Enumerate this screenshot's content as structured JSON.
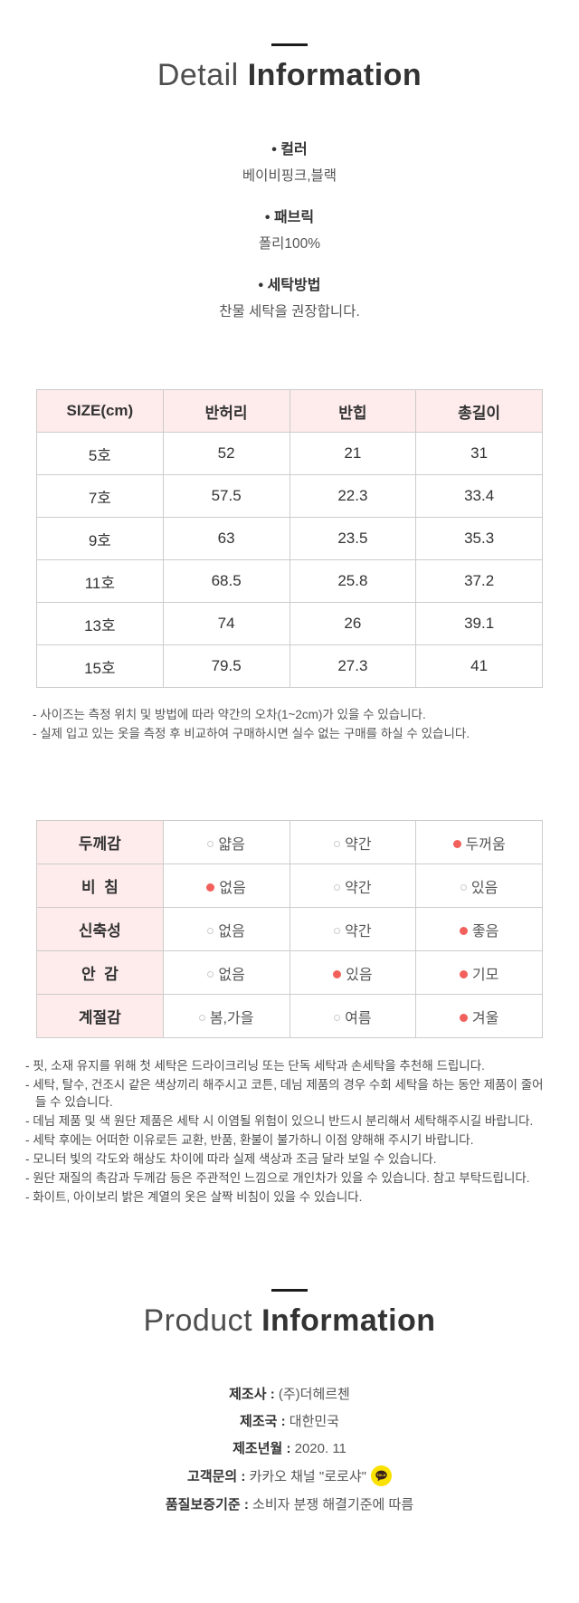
{
  "detail_section": {
    "title_light": "Detail",
    "title_bold": "Information",
    "bullet": "•",
    "specs": [
      {
        "key": "color",
        "label": "컬러",
        "value": "베이비핑크,블랙"
      },
      {
        "key": "fabric",
        "label": "패브릭",
        "value": "폴리100%"
      },
      {
        "key": "washing",
        "label": "세탁방법",
        "value": "찬물 세탁을 권장합니다."
      }
    ]
  },
  "size_table": {
    "headers": [
      "SIZE(cm)",
      "반허리",
      "반힙",
      "총길이"
    ],
    "rows": [
      [
        "5호",
        "52",
        "21",
        "31"
      ],
      [
        "7호",
        "57.5",
        "22.3",
        "33.4"
      ],
      [
        "9호",
        "63",
        "23.5",
        "35.3"
      ],
      [
        "11호",
        "68.5",
        "25.8",
        "37.2"
      ],
      [
        "13호",
        "74",
        "26",
        "39.1"
      ],
      [
        "15호",
        "79.5",
        "27.3",
        "41"
      ]
    ],
    "notes": [
      "- 사이즈는 측정 위치 및 방법에 따라 약간의 오차(1~2cm)가 있을 수 있습니다.",
      "- 실제 입고 있는 옷을 측정 후 비교하여 구매하시면 실수 없는 구매를 하실 수 있습니다."
    ]
  },
  "attribute_table": {
    "rows": [
      {
        "key": "thickness",
        "label": "두께감",
        "options": [
          {
            "text": "얇음",
            "selected": false
          },
          {
            "text": "약간",
            "selected": false
          },
          {
            "text": "두꺼움",
            "selected": true
          }
        ]
      },
      {
        "key": "sheerness",
        "label": "비  침",
        "options": [
          {
            "text": "없음",
            "selected": true
          },
          {
            "text": "약간",
            "selected": false
          },
          {
            "text": "있음",
            "selected": false
          }
        ]
      },
      {
        "key": "elasticity",
        "label": "신축성",
        "options": [
          {
            "text": "없음",
            "selected": false
          },
          {
            "text": "약간",
            "selected": false
          },
          {
            "text": "좋음",
            "selected": true
          }
        ]
      },
      {
        "key": "lining",
        "label": "안  감",
        "options": [
          {
            "text": "없음",
            "selected": false
          },
          {
            "text": "있음",
            "selected": true
          },
          {
            "text": "기모",
            "selected": true
          }
        ]
      },
      {
        "key": "season",
        "label": "계절감",
        "options": [
          {
            "text": "봄,가을",
            "selected": false
          },
          {
            "text": "여름",
            "selected": false
          },
          {
            "text": "겨울",
            "selected": true
          }
        ]
      }
    ]
  },
  "care_notes": [
    "- 핏, 소재 유지를 위해 첫 세탁은 드라이크리닝 또는 단독 세탁과 손세탁을 추천해 드립니다.",
    "- 세탁, 탈수, 건조시 같은 색상끼리 해주시고 코튼, 데님 제품의 경우 수회 세탁을 하는 동안 제품이 줄어들 수 있습니다.",
    "- 데님 제품 및 색 원단 제품은 세탁 시 이염될 위험이 있으니 반드시 분리해서 세탁해주시길 바랍니다.",
    "- 세탁 후에는 어떠한 이유로든 교환, 반품, 환불이 불가하니 이점 양해해 주시기 바랍니다.",
    "- 모니터 빛의 각도와 해상도 차이에 따라 실제 색상과 조금 달라 보일 수 있습니다.",
    "- 원단 재질의 촉감과 두께감 등은 주관적인 느낌으로 개인차가 있을 수 있습니다. 참고 부탁드립니다.",
    "- 화이트, 아이보리 밝은 계열의 옷은 살짝 비침이 있을 수 있습니다."
  ],
  "product_section": {
    "title_light": "Product",
    "title_bold": "Information",
    "fields": [
      {
        "key": "manufacturer",
        "label": "제조사",
        "value": "(주)더헤르첸"
      },
      {
        "key": "country",
        "label": "제조국",
        "value": "대한민국"
      },
      {
        "key": "date",
        "label": "제조년월",
        "value": "2020. 11"
      },
      {
        "key": "contact",
        "label": "고객문의",
        "value": "카카오 채널 \"로로샤\"",
        "icon": "kakao-icon"
      },
      {
        "key": "warranty",
        "label": "품질보증기준",
        "value": "소비자 분쟁 해결기준에 따름"
      }
    ]
  },
  "colors": {
    "header_pink": "#fdeceb",
    "accent_red": "#f2605c",
    "divider_black": "#1c1c1c",
    "table_border": "#cccccc",
    "kakao_yellow": "#fae100",
    "kakao_brown": "#381f1f"
  }
}
